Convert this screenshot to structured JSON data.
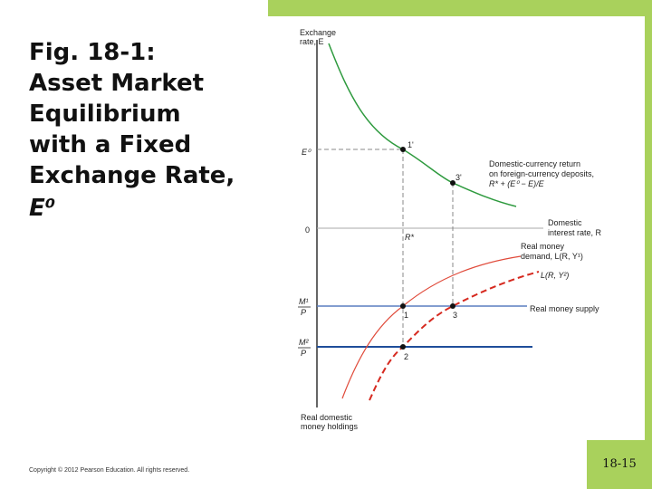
{
  "slide": {
    "title": [
      "Fig. 18-1:",
      "Asset Market",
      "Equilibrium",
      "with a Fixed",
      "Exchange Rate,",
      "E⁰"
    ],
    "copyright": "Copyright © 2012 Pearson Education. All rights reserved.",
    "page_number": "18-15"
  },
  "diagram": {
    "y_axis_label": [
      "Exchange",
      "rate, E"
    ],
    "x_axis_label": [
      "Real domestic",
      "money holdings"
    ],
    "e0_label": "E⁰",
    "zero_label": "0",
    "m1_label": [
      "M¹",
      "P"
    ],
    "m2_label": [
      "M²",
      "P"
    ],
    "points": [
      "1'",
      "3'",
      "1",
      "3",
      "2",
      "R*"
    ],
    "foreign_return_label": [
      "Domestic-currency return",
      "on foreign-currency deposits,",
      "R* + (E⁰ − E)/E"
    ],
    "domestic_rate_label": [
      "Domestic",
      "interest rate, R"
    ],
    "money_demand_label": [
      "Real money",
      "demand, L(R, Y¹)"
    ],
    "money_demand_2_label": "L(R, Y²)",
    "money_supply_label": "Real money supply"
  }
}
